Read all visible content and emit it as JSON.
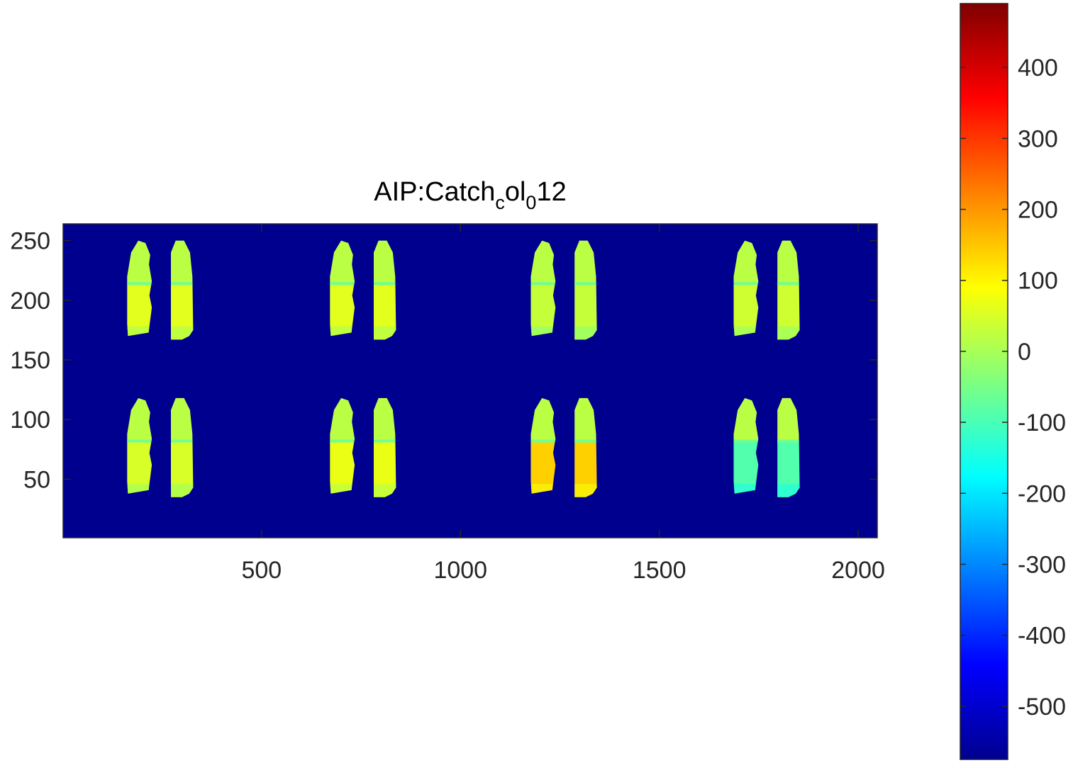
{
  "chart_data": {
    "type": "heatmap",
    "title": {
      "main": "AIP:Catch",
      "sub1": "c",
      "mid": "ol",
      "sub2": "0",
      "tail": "12"
    },
    "xlabel": "",
    "ylabel": "",
    "xlim": [
      1,
      2048
    ],
    "ylim": [
      1,
      264
    ],
    "x_ticks": [
      500,
      1000,
      1500,
      2000
    ],
    "x_tick_labels": [
      "500",
      "1000",
      "1500",
      "2000"
    ],
    "y_ticks": [
      50,
      100,
      150,
      200,
      250
    ],
    "y_tick_labels": [
      "50",
      "100",
      "150",
      "200",
      "250"
    ],
    "background_value": -570,
    "colormap": "jet",
    "colorbar": {
      "limits": [
        -575,
        490
      ],
      "ticks": [
        -500,
        -400,
        -300,
        -200,
        -100,
        0,
        100,
        200,
        300,
        400
      ],
      "tick_labels": [
        "-500",
        "-400",
        "-300",
        "-200",
        "-100",
        "0",
        "100",
        "200",
        "300",
        "400"
      ],
      "placement": "right"
    },
    "panels": [
      {
        "row": "top",
        "cx": 250,
        "cy": 200,
        "upper_value": 20,
        "lower_value": 60
      },
      {
        "row": "top",
        "cx": 760,
        "cy": 200,
        "upper_value": 20,
        "lower_value": 60
      },
      {
        "row": "top",
        "cx": 1265,
        "cy": 200,
        "upper_value": 20,
        "lower_value": 30
      },
      {
        "row": "top",
        "cx": 1775,
        "cy": 200,
        "upper_value": 20,
        "lower_value": 40
      },
      {
        "row": "bottom",
        "cx": 250,
        "cy": 68,
        "upper_value": 20,
        "lower_value": 50
      },
      {
        "row": "bottom",
        "cx": 760,
        "cy": 68,
        "upper_value": 20,
        "lower_value": 70
      },
      {
        "row": "bottom",
        "cx": 1265,
        "cy": 68,
        "upper_value": 20,
        "lower_value": 140
      },
      {
        "row": "bottom",
        "cx": 1775,
        "cy": 68,
        "upper_value": 20,
        "lower_value": -90
      }
    ]
  }
}
